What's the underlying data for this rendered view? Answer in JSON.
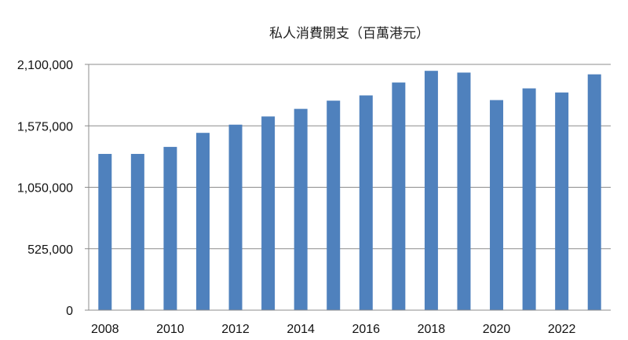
{
  "chart_data": {
    "type": "bar",
    "title": "私人消費開支（百萬港元）",
    "xlabel": "",
    "ylabel": "",
    "categories": [
      "2008",
      "2009",
      "2010",
      "2011",
      "2012",
      "2013",
      "2014",
      "2015",
      "2016",
      "2017",
      "2018",
      "2019",
      "2020",
      "2021",
      "2022",
      "2023"
    ],
    "values": [
      1335000,
      1335000,
      1395000,
      1515000,
      1585000,
      1655000,
      1720000,
      1790000,
      1835000,
      1945000,
      2045000,
      2030000,
      1795000,
      1895000,
      1860000,
      2015000
    ],
    "ylim": [
      0,
      2100000
    ],
    "yticks": [
      0,
      525000,
      1050000,
      1575000,
      2100000
    ],
    "ytick_labels": [
      "0",
      "525,000",
      "1,050,000",
      "1,575,000",
      "2,100,000"
    ],
    "xtick_labels": [
      "2008",
      "2010",
      "2012",
      "2014",
      "2016",
      "2018",
      "2020",
      "2022"
    ],
    "grid": "y",
    "legend": "none",
    "bar_color": "#4f81bd"
  }
}
